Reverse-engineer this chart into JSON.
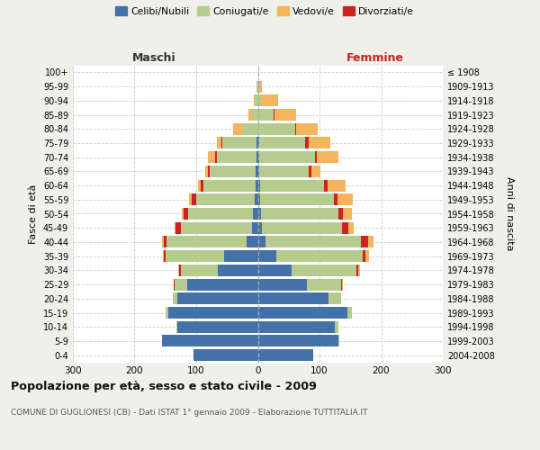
{
  "age_groups": [
    "0-4",
    "5-9",
    "10-14",
    "15-19",
    "20-24",
    "25-29",
    "30-34",
    "35-39",
    "40-44",
    "45-49",
    "50-54",
    "55-59",
    "60-64",
    "65-69",
    "70-74",
    "75-79",
    "80-84",
    "85-89",
    "90-94",
    "95-99",
    "100+"
  ],
  "birth_years": [
    "2004-2008",
    "1999-2003",
    "1994-1998",
    "1989-1993",
    "1984-1988",
    "1979-1983",
    "1974-1978",
    "1969-1973",
    "1964-1968",
    "1959-1963",
    "1954-1958",
    "1949-1953",
    "1944-1948",
    "1939-1943",
    "1934-1938",
    "1929-1933",
    "1924-1928",
    "1919-1923",
    "1914-1918",
    "1909-1913",
    "≤ 1908"
  ],
  "maschi": {
    "celibe": [
      105,
      155,
      130,
      145,
      130,
      115,
      65,
      55,
      18,
      10,
      8,
      5,
      4,
      3,
      2,
      2,
      0,
      0,
      0,
      0,
      0
    ],
    "coniugato": [
      0,
      0,
      2,
      5,
      8,
      20,
      60,
      95,
      130,
      115,
      105,
      95,
      85,
      75,
      65,
      55,
      25,
      10,
      5,
      2,
      0
    ],
    "vedovo": [
      0,
      0,
      0,
      0,
      0,
      0,
      1,
      1,
      2,
      2,
      3,
      3,
      5,
      5,
      12,
      8,
      15,
      5,
      2,
      0,
      0
    ],
    "divorziato": [
      0,
      0,
      0,
      0,
      0,
      2,
      3,
      3,
      5,
      8,
      8,
      8,
      3,
      3,
      2,
      2,
      0,
      0,
      0,
      0,
      0
    ]
  },
  "femmine": {
    "celibe": [
      90,
      130,
      125,
      145,
      115,
      80,
      55,
      30,
      12,
      6,
      5,
      4,
      3,
      2,
      2,
      2,
      0,
      0,
      0,
      0,
      0
    ],
    "coniugata": [
      0,
      2,
      5,
      8,
      20,
      55,
      105,
      140,
      155,
      130,
      125,
      120,
      105,
      80,
      90,
      75,
      60,
      25,
      5,
      2,
      0
    ],
    "vedova": [
      0,
      0,
      0,
      0,
      0,
      1,
      2,
      5,
      8,
      10,
      15,
      25,
      30,
      15,
      35,
      35,
      35,
      35,
      28,
      5,
      0
    ],
    "divorziata": [
      0,
      0,
      0,
      0,
      0,
      2,
      3,
      5,
      12,
      10,
      8,
      5,
      5,
      5,
      3,
      5,
      2,
      2,
      0,
      0,
      0
    ]
  },
  "colors": {
    "celibe": "#4472a8",
    "coniugato": "#b5cc8e",
    "vedovo": "#f2b45c",
    "divorziato": "#cc2222"
  },
  "xlim": 300,
  "title": "Popolazione per età, sesso e stato civile - 2009",
  "subtitle": "COMUNE DI GUGLIONESI (CB) - Dati ISTAT 1° gennaio 2009 - Elaborazione TUTTITALIA.IT",
  "ylabel_left": "Fasce di età",
  "ylabel_right": "Anni di nascita",
  "xlabel_maschi": "Maschi",
  "xlabel_femmine": "Femmine",
  "bg_color": "#f0f0eb",
  "plot_bg_color": "#ffffff",
  "legend": [
    "Celibi/Nubili",
    "Coniugati/e",
    "Vedovi/e",
    "Divorziati/e"
  ]
}
